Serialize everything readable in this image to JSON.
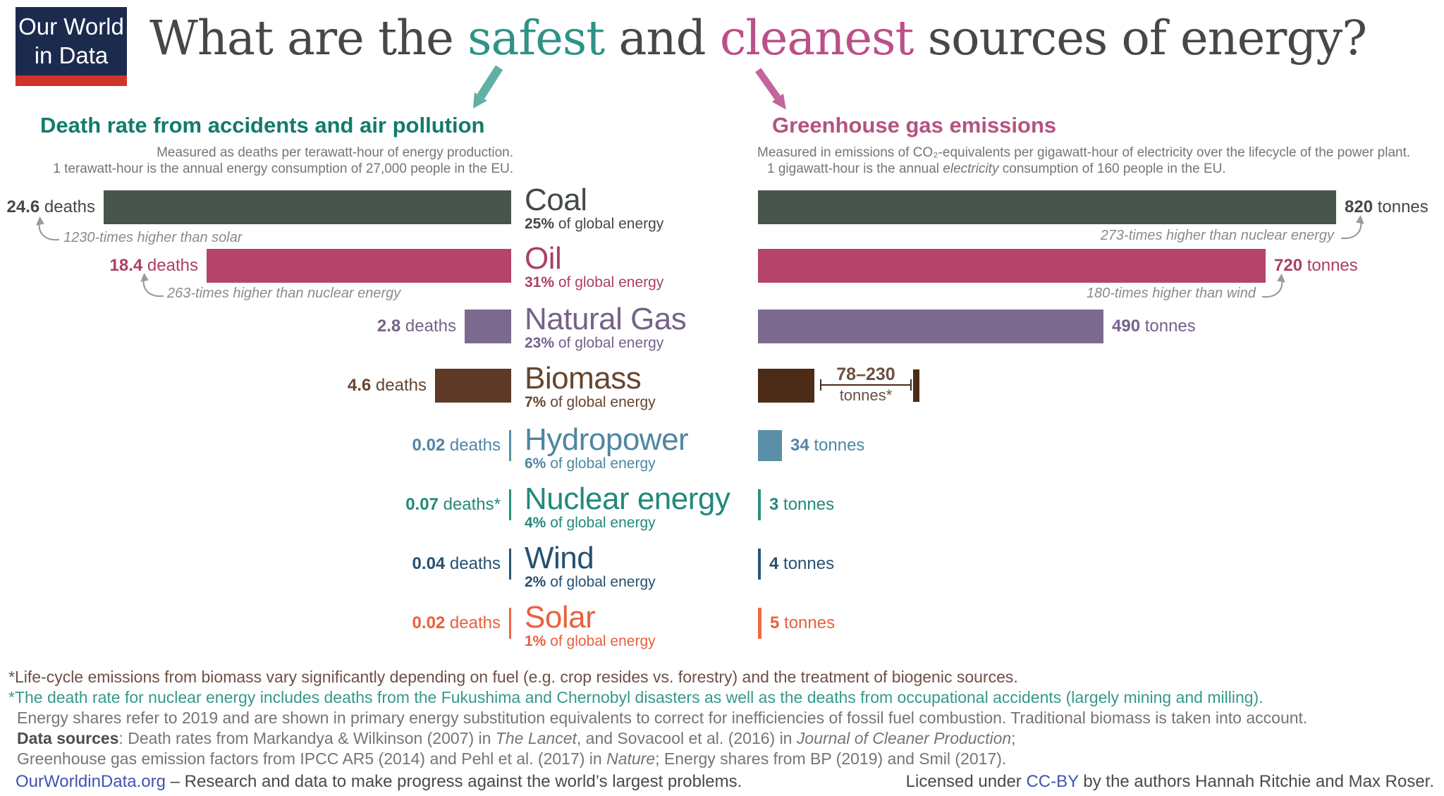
{
  "logo": {
    "line1": "Our World",
    "line2": "in Data"
  },
  "title": {
    "pre": "What are the ",
    "word1": "safest",
    "mid": " and ",
    "word2": "cleanest",
    "post": " sources of energy?"
  },
  "colors": {
    "accent_teal": "#2f9287",
    "accent_pink": "#bb4f88",
    "left_header_teal": "#127b6b",
    "right_header_pink": "#b5537f",
    "title_gray": "#474747",
    "subtitle_gray": "#757575",
    "annotation_gray": "#8b8b8b",
    "link_blue": "#4053b2",
    "footnote_brown": "#6d5044",
    "footnote_teal": "#35998a",
    "footnote_gray": "#757575",
    "logo_navy": "#1c2a4e",
    "logo_red": "#d0332a",
    "arrow_teal": "#62b0a5",
    "arrow_pink": "#c2659c"
  },
  "left_chart": {
    "title": "Death rate from accidents and air pollution",
    "subtitle1": "Measured as deaths per terawatt-hour of energy production.",
    "subtitle2": "1 terawatt-hour is the annual energy consumption of 27,000 people in the EU."
  },
  "right_chart": {
    "title": "Greenhouse gas emissions",
    "subtitle1": "Measured in emissions of CO₂-equivalents per gigawatt-hour of electricity over the lifecycle of the power plant.",
    "subtitle2_pre": "1 gigawatt-hour is the annual ",
    "subtitle2_italic": "electricity",
    "subtitle2_post": " consumption of 160 people in the EU."
  },
  "rows": [
    {
      "id": "coal",
      "name": "Coal",
      "share": "25%",
      "share_rest": " of global energy",
      "deaths": "24.6",
      "deaths_value": 24.6,
      "deaths_unit": "deaths",
      "tonnes": "820",
      "tonnes_value": 820,
      "tonnes_unit": "tonnes",
      "color": "#47554d",
      "text_color": "#424a42"
    },
    {
      "id": "oil",
      "name": "Oil",
      "share": "31%",
      "share_rest": " of global energy",
      "deaths": "18.4",
      "deaths_value": 18.4,
      "deaths_unit": "deaths",
      "tonnes": "720",
      "tonnes_value": 720,
      "tonnes_unit": "tonnes",
      "color": "#b5446b",
      "text_color": "#ab3f66"
    },
    {
      "id": "natural-gas",
      "name": "Natural Gas",
      "share": "23%",
      "share_rest": " of global energy",
      "deaths": "2.8",
      "deaths_value": 2.8,
      "deaths_unit": "deaths",
      "tonnes": "490",
      "tonnes_value": 490,
      "tonnes_unit": "tonnes",
      "color": "#7b6a8e",
      "text_color": "#746289"
    },
    {
      "id": "biomass",
      "name": "Biomass",
      "share": "7%",
      "share_rest": " of global energy",
      "deaths": "4.6",
      "deaths_value": 4.6,
      "deaths_unit": "deaths",
      "tonnes_range": "78–230",
      "tonnes_unit": "tonnes*",
      "tonnes_low": 78,
      "tonnes_high": 230,
      "color": "#5e3a27",
      "right_color": "#4c2b17",
      "range_text_color": "#6b5042",
      "text_color": "#66452f"
    },
    {
      "id": "hydropower",
      "name": "Hydropower",
      "share": "6%",
      "share_rest": " of global energy",
      "deaths": "0.02",
      "deaths_value": 0.02,
      "deaths_unit": "deaths",
      "tonnes": "34",
      "tonnes_value": 34,
      "tonnes_unit": "tonnes",
      "color": "#5b8fa8",
      "text_color": "#4f86a3"
    },
    {
      "id": "nuclear",
      "name": "Nuclear energy",
      "share": "4%",
      "share_rest": " of global energy",
      "deaths": "0.07",
      "deaths_value": 0.07,
      "deaths_unit": "deaths*",
      "tonnes": "3",
      "tonnes_value": 3,
      "tonnes_unit": "tonnes",
      "color": "#2b8f7d",
      "text_color": "#23897a"
    },
    {
      "id": "wind",
      "name": "Wind",
      "share": "2%",
      "share_rest": " of global energy",
      "deaths": "0.04",
      "deaths_value": 0.04,
      "deaths_unit": "deaths",
      "tonnes": "4",
      "tonnes_value": 4,
      "tonnes_unit": "tonnes",
      "color": "#2b5576",
      "text_color": "#27506f"
    },
    {
      "id": "solar",
      "name": "Solar",
      "share": "1%",
      "share_rest": " of global energy",
      "deaths": "0.02",
      "deaths_value": 0.02,
      "deaths_unit": "deaths",
      "tonnes": "5",
      "tonnes_value": 5,
      "tonnes_unit": "tonnes",
      "color": "#ee6845",
      "text_color": "#e9603d"
    }
  ],
  "annotations": [
    {
      "id": "coal-left",
      "text": "1230-times higher than solar"
    },
    {
      "id": "oil-left",
      "text": "263-times higher than nuclear energy"
    },
    {
      "id": "coal-right",
      "text": "273-times higher than nuclear energy"
    },
    {
      "id": "oil-right",
      "text": "180-times higher than wind"
    }
  ],
  "footnotes": [
    {
      "color": "#6d5044",
      "segments": [
        {
          "t": "*Life-cycle emissions from biomass vary significantly depending on fuel (e.g. crop resides vs. forestry) and the treatment of biogenic sources."
        }
      ]
    },
    {
      "color": "#35998a",
      "segments": [
        {
          "t": "*The death rate for nuclear energy includes deaths from the Fukushima and Chernobyl disasters as well as the deaths from occupational accidents (largely mining and milling)."
        }
      ]
    },
    {
      "color": "#757575",
      "indent": true,
      "segments": [
        {
          "t": "Energy shares refer to 2019 and are shown in primary energy substitution equivalents to correct for inefficiencies of fossil fuel combustion. Traditional biomass is taken into account."
        }
      ]
    },
    {
      "color": "#757575",
      "indent": true,
      "segments": [
        {
          "t": "Data sources",
          "b": 1
        },
        {
          "t": ": Death rates from Markandya & Wilkinson (2007) in "
        },
        {
          "t": "The Lancet",
          "i": 1
        },
        {
          "t": ", and Sovacool et al. (2016) in "
        },
        {
          "t": "Journal of Cleaner Production",
          "i": 1
        },
        {
          "t": ";"
        }
      ]
    },
    {
      "color": "#757575",
      "indent": true,
      "segments": [
        {
          "t": "Greenhouse gas emission factors from IPCC AR5 (2014) and Pehl et al. (2017) in "
        },
        {
          "t": "Nature",
          "i": 1
        },
        {
          "t": "; Energy shares from BP (2019) and Smil (2017)."
        }
      ]
    }
  ],
  "bottom": {
    "left": {
      "segments": [
        {
          "t": "OurWorldinData.org",
          "link": 1,
          "name": "ourworldindata-link"
        },
        {
          "t": " – Research and data to make progress against the world’s largest problems."
        }
      ]
    },
    "right": {
      "segments": [
        {
          "t": "Licensed under "
        },
        {
          "t": "CC-BY",
          "link": 1,
          "name": "cc-by-link"
        },
        {
          "t": " by the authors Hannah Ritchie and Max Roser."
        }
      ]
    }
  },
  "chart_data": {
    "type": "bar",
    "orientation": "horizontal",
    "title": "What are the safest and cleanest sources of energy?",
    "categories": [
      "Coal",
      "Oil",
      "Natural Gas",
      "Biomass",
      "Hydropower",
      "Nuclear energy",
      "Wind",
      "Solar"
    ],
    "share_of_global_energy": [
      "25%",
      "31%",
      "23%",
      "7%",
      "6%",
      "4%",
      "2%",
      "1%"
    ],
    "series": [
      {
        "name": "Death rate from accidents and air pollution",
        "unit": "deaths per terawatt-hour of energy production",
        "values": [
          24.6,
          18.4,
          2.8,
          4.6,
          0.02,
          0.07,
          0.04,
          0.02
        ]
      },
      {
        "name": "Greenhouse gas emissions",
        "unit": "tonnes of CO₂-equivalents per gigawatt-hour of electricity",
        "values": [
          820,
          720,
          490,
          {
            "low": 78,
            "high": 230
          },
          34,
          3,
          4,
          5
        ]
      }
    ],
    "annotations": [
      "Coal deaths: 1230-times higher than solar",
      "Oil deaths: 263-times higher than nuclear energy",
      "Coal emissions: 273-times higher than nuclear energy",
      "Oil emissions: 180-times higher than wind"
    ],
    "legend_position": "none",
    "grid": false
  }
}
